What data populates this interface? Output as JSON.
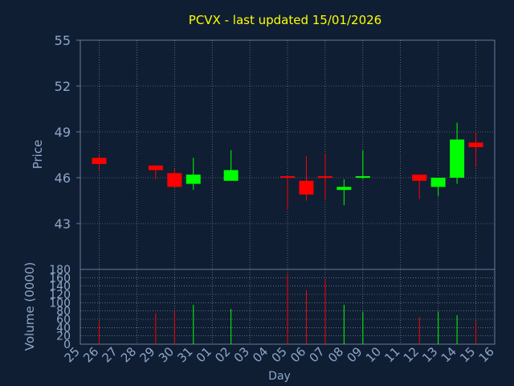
{
  "chart_data": {
    "type": "candlestick",
    "title": "PCVX - last updated 15/01/2026",
    "xlabel": "Day",
    "price_panel": {
      "ylabel": "Price",
      "ylim": [
        40,
        55
      ],
      "yticks": [
        "55",
        "52",
        "49",
        "46",
        "43"
      ],
      "ytick_values": [
        55,
        52,
        49,
        46,
        43
      ]
    },
    "volume_panel": {
      "ylabel": "Volume (0000)",
      "ylim": [
        0,
        180
      ],
      "yticks": [
        "180",
        "160",
        "140",
        "120",
        "100",
        "80",
        "60",
        "40",
        "20",
        "0"
      ],
      "ytick_values": [
        180,
        160,
        140,
        120,
        100,
        80,
        60,
        40,
        20,
        0
      ]
    },
    "x_ticks": [
      "25",
      "26",
      "27",
      "28",
      "29",
      "30",
      "31",
      "01",
      "02",
      "03",
      "04",
      "05",
      "06",
      "07",
      "08",
      "09",
      "10",
      "11",
      "12",
      "13",
      "14",
      "15",
      "16"
    ],
    "grid": true,
    "colors": {
      "background": "#0f1e33",
      "axis_text": "#8fa6c8",
      "title": "#ffff00",
      "up": "#00ff00",
      "down": "#ff0000",
      "grid": "#ffffff"
    },
    "candles": [
      {
        "day": "26",
        "open": 47.3,
        "high": 47.5,
        "low": 46.5,
        "close": 46.9,
        "volume": 55
      },
      {
        "day": "29",
        "open": 46.8,
        "high": 46.8,
        "low": 45.9,
        "close": 46.5,
        "volume": 75
      },
      {
        "day": "30",
        "open": 46.3,
        "high": 46.6,
        "low": 45.4,
        "close": 45.4,
        "volume": 80
      },
      {
        "day": "31",
        "open": 45.6,
        "high": 47.3,
        "low": 45.2,
        "close": 46.2,
        "volume": 95
      },
      {
        "day": "02",
        "open": 45.8,
        "high": 47.8,
        "low": 45.8,
        "close": 46.5,
        "volume": 85
      },
      {
        "day": "05",
        "open": 46.1,
        "high": 46.1,
        "low": 43.9,
        "close": 46.0,
        "volume": 170
      },
      {
        "day": "06",
        "open": 45.8,
        "high": 47.4,
        "low": 44.5,
        "close": 44.9,
        "volume": 130
      },
      {
        "day": "07",
        "open": 46.1,
        "high": 47.6,
        "low": 44.6,
        "close": 46.0,
        "volume": 155
      },
      {
        "day": "08",
        "open": 45.2,
        "high": 45.9,
        "low": 44.2,
        "close": 45.4,
        "volume": 95
      },
      {
        "day": "09",
        "open": 46.0,
        "high": 47.8,
        "low": 45.9,
        "close": 46.1,
        "volume": 78
      },
      {
        "day": "12",
        "open": 46.2,
        "high": 46.2,
        "low": 44.6,
        "close": 45.8,
        "volume": 65
      },
      {
        "day": "13",
        "open": 45.4,
        "high": 46.0,
        "low": 44.8,
        "close": 46.0,
        "volume": 78
      },
      {
        "day": "14",
        "open": 46.0,
        "high": 49.6,
        "low": 45.6,
        "close": 48.5,
        "volume": 70
      },
      {
        "day": "15",
        "open": 48.3,
        "high": 49.0,
        "low": 46.7,
        "close": 48.0,
        "volume": 55
      }
    ]
  }
}
